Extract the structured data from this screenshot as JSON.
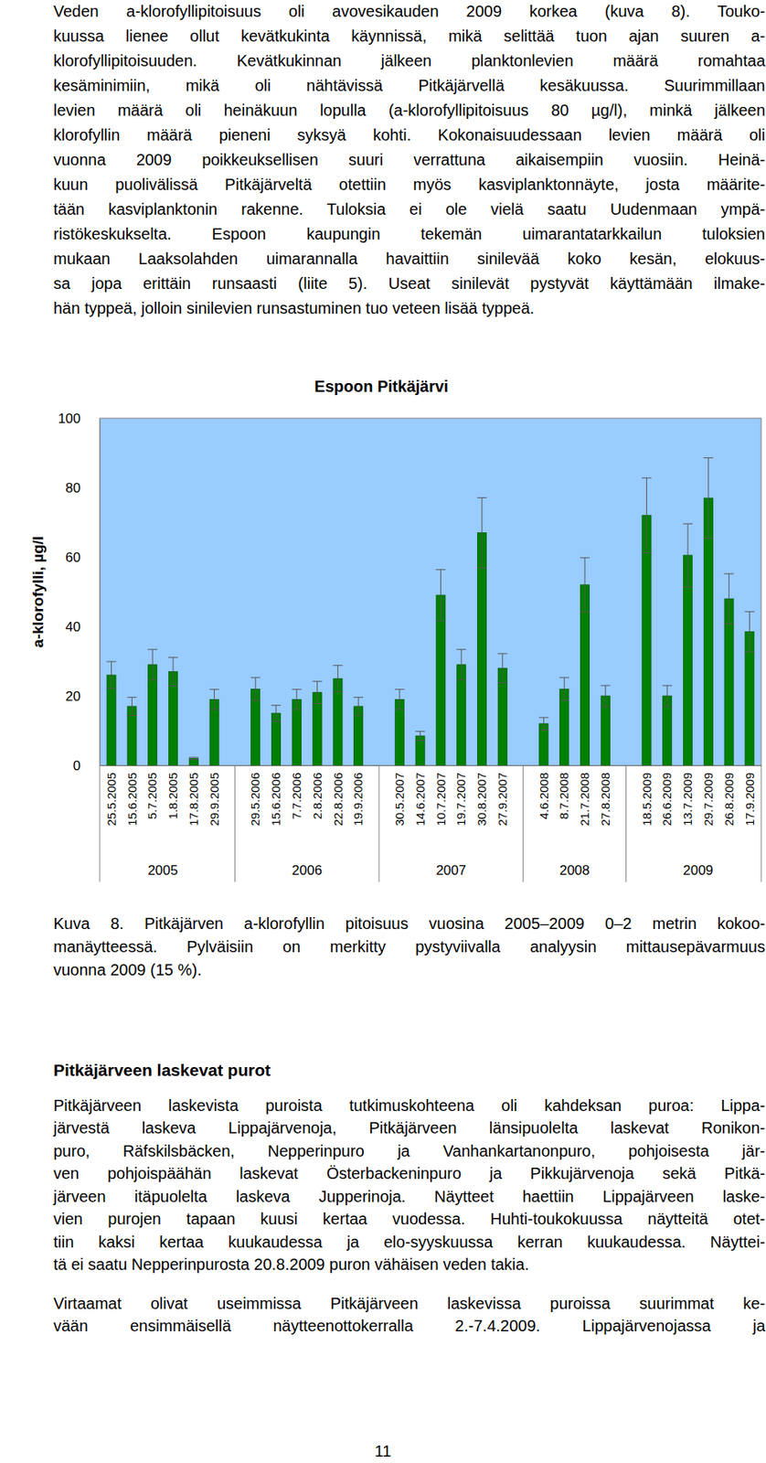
{
  "text_top": {
    "lines": [
      "Veden a-klorofyllipitoisuus oli avovesikauden 2009 korkea (kuva 8). Touko-",
      "kuussa lienee ollut kevätkukinta käynnissä, mikä selittää tuon ajan suuren a-",
      "klorofyllipitoisuuden. Kevätkukinnan jälkeen planktonlevien määrä romahtaa",
      "kesäminimiin, mikä oli nähtävissä Pitkäjärvellä kesäkuussa. Suurimmillaan",
      "levien määrä oli heinäkuun lopulla (a-klorofyllipitoisuus 80 µg/l), minkä jälkeen",
      "klorofyllin määrä pieneni syksyä kohti. Kokonaisuudessaan levien määrä oli",
      "vuonna 2009 poikkeuksellisen suuri verrattuna aikaisempiin vuosiin. Heinä-",
      "kuun puolivälissä Pitkäjärveltä otettiin myös kasviplanktonnäyte, josta määrite-",
      "tään kasviplanktonin rakenne. Tuloksia ei ole vielä saatu Uudenmaan ympä-",
      "ristökeskukselta. Espoon kaupungin tekemän uimarantatarkkailun tuloksien",
      "mukaan Laaksolahden uimarannalla havaittiin sinilevää koko kesän, elokuus-",
      "sa jopa erittäin runsaasti (liite 5). Useat sinilevät pystyvät käyttämään ilmake-",
      "hän typpeä, jolloin sinilevien runsastuminen tuo veteen lisää typpeä."
    ]
  },
  "chart_data": {
    "type": "bar",
    "title": "Espoon Pitkäjärvi",
    "y_label": "a-klorofylli, µg/l",
    "categories": [
      "25.5.2005",
      "15.6.2005",
      "5.7.2005",
      "1.8.2005",
      "17.8.2005",
      "29.9.2005",
      "29.5.2006",
      "15.6.2006",
      "7.7.2006",
      "2.8.2006",
      "22.8.2006",
      "19.9.2006",
      "30.5.2007",
      "14.6.2007",
      "10.7.2007",
      "19.7.2007",
      "30.8.2007",
      "27.9.2007",
      "4.6.2008",
      "8.7.2008",
      "21.7.2008",
      "27.8.2008",
      "18.5.2009",
      "26.6.2009",
      "13.7.2009",
      "29.7.2009",
      "26.8.2009",
      "17.9.2009"
    ],
    "category_groups": [
      {
        "label": "2005",
        "size": 6
      },
      {
        "label": "2006",
        "size": 6
      },
      {
        "label": "2007",
        "size": 6
      },
      {
        "label": "2008",
        "size": 4
      },
      {
        "label": "2009",
        "size": 6
      }
    ],
    "values": [
      26,
      17,
      29,
      27,
      2,
      19,
      22,
      15,
      19,
      21,
      25,
      17,
      19,
      8.5,
      49,
      29,
      67,
      28,
      12,
      22,
      52,
      20,
      72,
      20,
      60.5,
      77,
      48,
      38.5
    ],
    "errors": [
      3.9,
      2.6,
      4.4,
      4.1,
      0.3,
      2.9,
      3.3,
      2.3,
      2.9,
      3.2,
      3.8,
      2.6,
      2.9,
      1.3,
      7.4,
      4.4,
      10.1,
      4.2,
      1.8,
      3.3,
      7.8,
      3.0,
      10.8,
      3.0,
      9.1,
      11.6,
      7.2,
      5.8
    ],
    "color": "#008000",
    "ylim": [
      0,
      100
    ],
    "yticks": [
      0,
      20,
      40,
      60,
      80,
      100
    ],
    "grid": false
  },
  "caption": {
    "lines": [
      "Kuva 8. Pitkäjärven a-klorofyllin pitoisuus vuosina 2005–2009 0–2 metrin kokoo-",
      "manäytteessä. Pylväisiin on merkitty pystyviivalla analyysin mittausepävarmuus",
      "vuonna 2009 (15 %)."
    ]
  },
  "heading": "Pitkäjärveen laskevat purot",
  "paragraphs": [
    {
      "lines": [
        "Pitkäjärveen laskevista puroista tutkimuskohteena oli kahdeksan puroa: Lippa-",
        "järvestä laskeva Lippajärvenoja, Pitkäjärveen länsipuolelta laskevat Ronikon-",
        "puro, Räfskilsbäcken, Nepperinpuro ja Vanhankartanonpuro, pohjoisesta jär-",
        "ven pohjoispäähän laskevat Österbackeninpuro ja Pikkujärvenoja sekä Pitkä-",
        "järveen itäpuolelta laskeva Jupperinoja. Näytteet haettiin Lippajärveen laske-",
        "vien purojen tapaan kuusi kertaa vuodessa. Huhti-toukokuussa näytteitä otet-",
        "tiin kaksi kertaa kuukaudessa ja elo-syyskuussa kerran kuukaudessa. Näyttei-",
        "tä ei saatu Nepperinpurosta 20.8.2009 puron vähäisen veden takia."
      ]
    },
    {
      "lines": [
        "Virtaamat olivat useimmissa Pitkäjärveen laskevissa puroissa suurimmat ke-",
        "vään ensimmäisellä näytteenottokerralla 2.-7.4.2009. Lippajärvenojassa ja"
      ],
      "continues": true
    }
  ],
  "page_number": "11"
}
